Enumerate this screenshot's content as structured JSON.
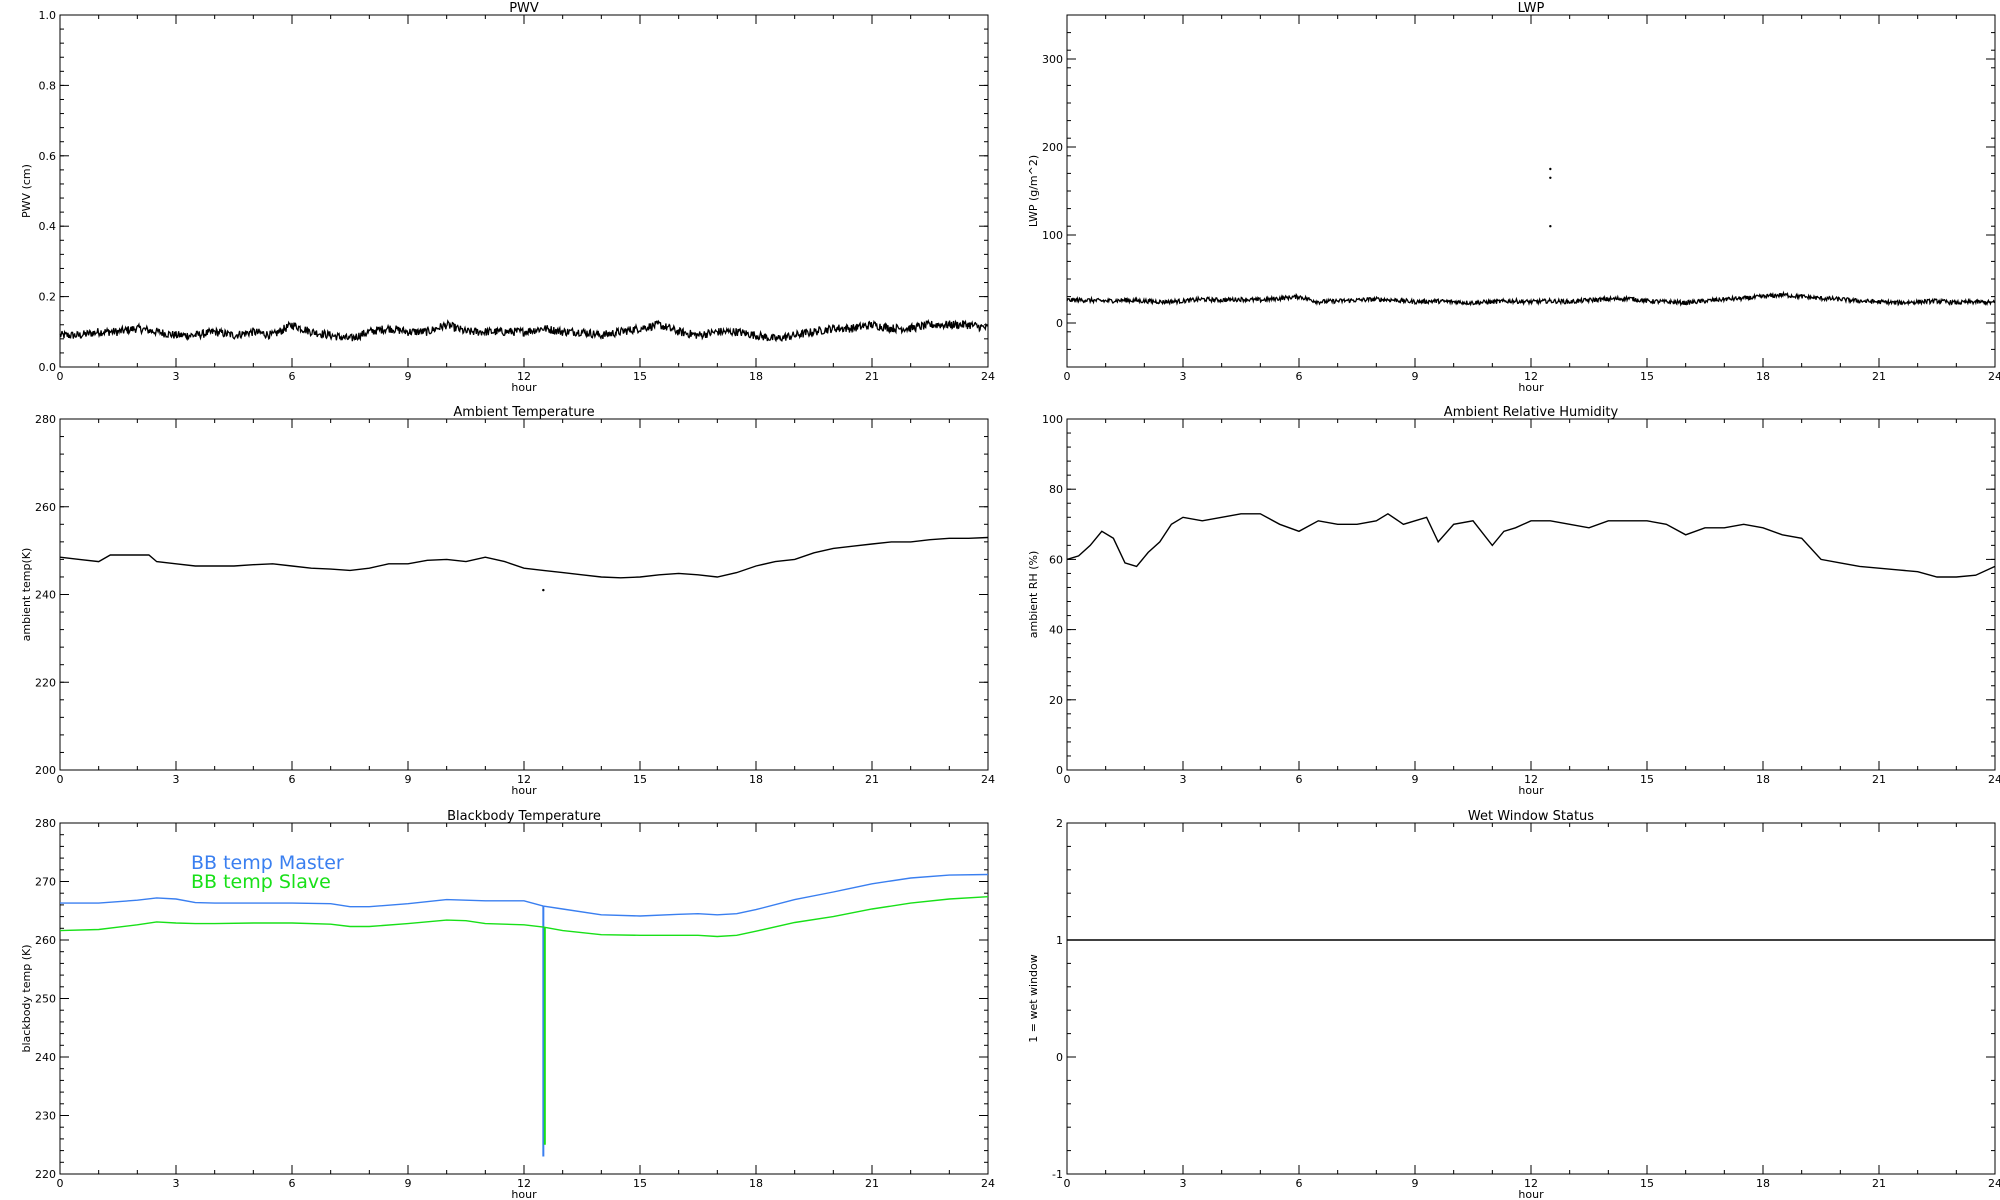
{
  "chart_data": [
    {
      "type": "line",
      "title": "PWV",
      "xlabel": "hour",
      "ylabel": "PWV (cm)",
      "xlim": [
        0,
        24
      ],
      "ylim": [
        0.0,
        1.0
      ],
      "xticks": [
        0,
        3,
        6,
        9,
        12,
        15,
        18,
        21,
        24
      ],
      "xticklabels": [
        "0",
        "3",
        "6",
        "9",
        "12",
        "15",
        "18",
        "21",
        "24"
      ],
      "yticks": [
        0.0,
        0.2,
        0.4,
        0.6,
        0.8,
        1.0
      ],
      "yticklabels": [
        "0.0",
        "0.2",
        "0.4",
        "0.6",
        "0.8",
        "1.0"
      ],
      "grid": false,
      "series": [
        {
          "color": "#000000",
          "x": [
            0,
            0.5,
            1,
            1.5,
            2,
            2.5,
            3,
            3.5,
            4,
            4.5,
            5,
            5.5,
            6,
            6.5,
            7,
            7.5,
            8,
            8.5,
            9,
            9.5,
            10,
            10.5,
            11,
            11.5,
            12,
            12.5,
            13,
            13.5,
            14,
            14.5,
            15,
            15.5,
            16,
            16.5,
            17,
            17.5,
            18,
            18.5,
            19,
            19.5,
            20,
            20.5,
            21,
            21.5,
            22,
            22.5,
            23,
            23.5,
            24
          ],
          "y": [
            0.09,
            0.09,
            0.1,
            0.1,
            0.11,
            0.1,
            0.09,
            0.09,
            0.1,
            0.09,
            0.1,
            0.09,
            0.12,
            0.1,
            0.09,
            0.08,
            0.1,
            0.11,
            0.1,
            0.1,
            0.12,
            0.1,
            0.1,
            0.1,
            0.1,
            0.11,
            0.1,
            0.1,
            0.09,
            0.1,
            0.11,
            0.12,
            0.1,
            0.09,
            0.1,
            0.1,
            0.09,
            0.08,
            0.09,
            0.1,
            0.11,
            0.11,
            0.12,
            0.11,
            0.11,
            0.12,
            0.12,
            0.12,
            0.11
          ]
        }
      ]
    },
    {
      "type": "line",
      "title": "LWP",
      "xlabel": "hour",
      "ylabel": "LWP (g/m^2)",
      "xlim": [
        0,
        24
      ],
      "ylim": [
        -50,
        350
      ],
      "xticks": [
        0,
        3,
        6,
        9,
        12,
        15,
        18,
        21,
        24
      ],
      "xticklabels": [
        "0",
        "3",
        "6",
        "9",
        "12",
        "15",
        "18",
        "21",
        "24"
      ],
      "yticks": [
        0,
        100,
        200,
        300
      ],
      "yticklabels": [
        "0",
        "100",
        "200",
        "300"
      ],
      "grid": false,
      "series": [
        {
          "color": "#000000",
          "x": [
            0,
            0.5,
            1,
            1.5,
            2,
            2.5,
            3,
            3.5,
            4,
            4.5,
            5,
            5.5,
            6,
            6.5,
            7,
            7.5,
            8,
            8.5,
            9,
            9.5,
            10,
            10.5,
            11,
            11.5,
            12,
            12.5,
            13,
            13.5,
            14,
            14.5,
            15,
            15.5,
            16,
            16.5,
            17,
            17.5,
            18,
            18.5,
            19,
            19.5,
            20,
            20.5,
            21,
            21.5,
            22,
            22.5,
            23,
            23.5,
            24
          ],
          "y": [
            26,
            26,
            25,
            26,
            25,
            24,
            25,
            27,
            26,
            27,
            26,
            28,
            30,
            24,
            25,
            26,
            27,
            26,
            24,
            25,
            24,
            23,
            24,
            25,
            24,
            25,
            24,
            26,
            27,
            28,
            25,
            24,
            23,
            25,
            27,
            28,
            30,
            32,
            30,
            28,
            27,
            25,
            24,
            23,
            24,
            25,
            23,
            24,
            23
          ]
        }
      ],
      "outliers": {
        "x": [
          12.5,
          12.5,
          12.5
        ],
        "y": [
          175,
          165,
          110
        ]
      }
    },
    {
      "type": "line",
      "title": "Ambient Temperature",
      "xlabel": "hour",
      "ylabel": "ambient temp(K)",
      "xlim": [
        0,
        24
      ],
      "ylim": [
        200,
        280
      ],
      "xticks": [
        0,
        3,
        6,
        9,
        12,
        15,
        18,
        21,
        24
      ],
      "xticklabels": [
        "0",
        "3",
        "6",
        "9",
        "12",
        "15",
        "18",
        "21",
        "24"
      ],
      "yticks": [
        200,
        220,
        240,
        260,
        280
      ],
      "yticklabels": [
        "200",
        "220",
        "240",
        "260",
        "280"
      ],
      "grid": false,
      "series": [
        {
          "color": "#000000",
          "x": [
            0,
            0.5,
            1,
            1.3,
            1.5,
            2,
            2.3,
            2.5,
            3,
            3.5,
            4,
            4.5,
            5,
            5.5,
            6,
            6.5,
            7,
            7.5,
            8,
            8.5,
            9,
            9.5,
            10,
            10.5,
            11,
            11.5,
            12,
            12.5,
            13,
            13.5,
            14,
            14.5,
            15,
            15.5,
            16,
            16.5,
            17,
            17.5,
            18,
            18.5,
            19,
            19.5,
            20,
            20.5,
            21,
            21.5,
            22,
            22.5,
            23,
            23.5,
            24
          ],
          "y": [
            248.5,
            248,
            247.5,
            249,
            249,
            249,
            249,
            247.5,
            247,
            246.5,
            246.5,
            246.5,
            246.8,
            247,
            246.5,
            246,
            245.8,
            245.5,
            246,
            247,
            247,
            247.8,
            248,
            247.5,
            248.5,
            247.5,
            246,
            245.5,
            245,
            244.5,
            244,
            243.8,
            244,
            244.5,
            244.8,
            244.5,
            244,
            245,
            246.5,
            247.5,
            248,
            249.5,
            250.5,
            251,
            251.5,
            252,
            252,
            252.5,
            252.8,
            252.8,
            253
          ]
        }
      ],
      "outliers": {
        "x": [
          12.5
        ],
        "y": [
          241
        ]
      }
    },
    {
      "type": "line",
      "title": "Ambient Relative Humidity",
      "xlabel": "hour",
      "ylabel": "ambient RH (%)",
      "xlim": [
        0,
        24
      ],
      "ylim": [
        0,
        100
      ],
      "xticks": [
        0,
        3,
        6,
        9,
        12,
        15,
        18,
        21,
        24
      ],
      "xticklabels": [
        "0",
        "3",
        "6",
        "9",
        "12",
        "15",
        "18",
        "21",
        "24"
      ],
      "yticks": [
        0,
        20,
        40,
        60,
        80,
        100
      ],
      "yticklabels": [
        "0",
        "20",
        "40",
        "60",
        "80",
        "100"
      ],
      "grid": false,
      "series": [
        {
          "color": "#000000",
          "x": [
            0,
            0.3,
            0.6,
            0.9,
            1.2,
            1.5,
            1.8,
            2.1,
            2.4,
            2.7,
            3,
            3.5,
            4,
            4.5,
            5,
            5.5,
            6,
            6.5,
            7,
            7.5,
            8,
            8.3,
            8.7,
            9,
            9.3,
            9.6,
            10,
            10.5,
            11,
            11.3,
            11.6,
            12,
            12.5,
            13,
            13.5,
            14,
            14.5,
            15,
            15.5,
            16,
            16.5,
            17,
            17.5,
            18,
            18.5,
            19,
            19.5,
            20,
            20.5,
            21,
            21.5,
            22,
            22.5,
            23,
            23.5,
            24
          ],
          "y": [
            60,
            61,
            64,
            68,
            66,
            59,
            58,
            62,
            65,
            70,
            72,
            71,
            72,
            73,
            73,
            70,
            68,
            71,
            70,
            70,
            71,
            73,
            70,
            71,
            72,
            65,
            70,
            71,
            64,
            68,
            69,
            71,
            71,
            70,
            69,
            71,
            71,
            71,
            70,
            67,
            69,
            69,
            70,
            69,
            67,
            66,
            60,
            59,
            58,
            57.5,
            57,
            56.5,
            55,
            55,
            55.5,
            58
          ]
        }
      ]
    },
    {
      "type": "line",
      "title": "Blackbody Temperature",
      "xlabel": "hour",
      "ylabel": "blackbody temp (K)",
      "xlim": [
        0,
        24
      ],
      "ylim": [
        220,
        280
      ],
      "xticks": [
        0,
        3,
        6,
        9,
        12,
        15,
        18,
        21,
        24
      ],
      "xticklabels": [
        "0",
        "3",
        "6",
        "9",
        "12",
        "15",
        "18",
        "21",
        "24"
      ],
      "yticks": [
        220,
        230,
        240,
        250,
        260,
        270,
        280
      ],
      "yticklabels": [
        "220",
        "230",
        "240",
        "250",
        "260",
        "270",
        "280"
      ],
      "grid": false,
      "legend_position": "top-left",
      "series": [
        {
          "name": "BB temp Master",
          "color": "#3a7ff0",
          "x": [
            0,
            1,
            2,
            2.5,
            3,
            3.5,
            4,
            5,
            6,
            7,
            7.5,
            8,
            9,
            10,
            10.5,
            11,
            12,
            12.5,
            13,
            14,
            15,
            16,
            16.5,
            17,
            17.5,
            18,
            19,
            20,
            21,
            22,
            23,
            24
          ],
          "y": [
            266.3,
            266.3,
            266.8,
            267.2,
            267,
            266.4,
            266.3,
            266.3,
            266.3,
            266.2,
            265.7,
            265.7,
            266.2,
            266.9,
            266.8,
            266.7,
            266.7,
            265.8,
            265.3,
            264.3,
            264.1,
            264.4,
            264.5,
            264.3,
            264.5,
            265.2,
            266.9,
            268.2,
            269.6,
            270.6,
            271.1,
            271.2
          ],
          "spike": {
            "x": 12.5,
            "to": 223
          }
        },
        {
          "name": "BB temp Slave",
          "color": "#18e018",
          "x": [
            0,
            1,
            2,
            2.5,
            3,
            3.5,
            4,
            5,
            6,
            7,
            7.5,
            8,
            9,
            10,
            10.5,
            11,
            12,
            12.5,
            13,
            14,
            15,
            16,
            16.5,
            17,
            17.5,
            18,
            19,
            20,
            21,
            22,
            23,
            24
          ],
          "y": [
            261.6,
            261.8,
            262.6,
            263.1,
            262.9,
            262.8,
            262.8,
            262.9,
            262.9,
            262.7,
            262.3,
            262.3,
            262.8,
            263.4,
            263.3,
            262.8,
            262.6,
            262.2,
            261.6,
            260.9,
            260.8,
            260.8,
            260.8,
            260.6,
            260.8,
            261.5,
            263.0,
            264.0,
            265.3,
            266.3,
            267.0,
            267.4
          ],
          "spike": {
            "x": 12.5,
            "to": 225
          }
        }
      ]
    },
    {
      "type": "line",
      "title": "Wet Window Status",
      "xlabel": "hour",
      "ylabel": "1 = wet window",
      "xlim": [
        0,
        24
      ],
      "ylim": [
        -1,
        2
      ],
      "xticks": [
        0,
        3,
        6,
        9,
        12,
        15,
        18,
        21,
        24
      ],
      "xticklabels": [
        "0",
        "3",
        "6",
        "9",
        "12",
        "15",
        "18",
        "21",
        "24"
      ],
      "yticks": [
        -1,
        0,
        1,
        2
      ],
      "yticklabels": [
        "-1",
        "0",
        "1",
        "2"
      ],
      "grid": false,
      "series": [
        {
          "color": "#000000",
          "x": [
            0,
            24
          ],
          "y": [
            1,
            1
          ]
        }
      ]
    }
  ]
}
